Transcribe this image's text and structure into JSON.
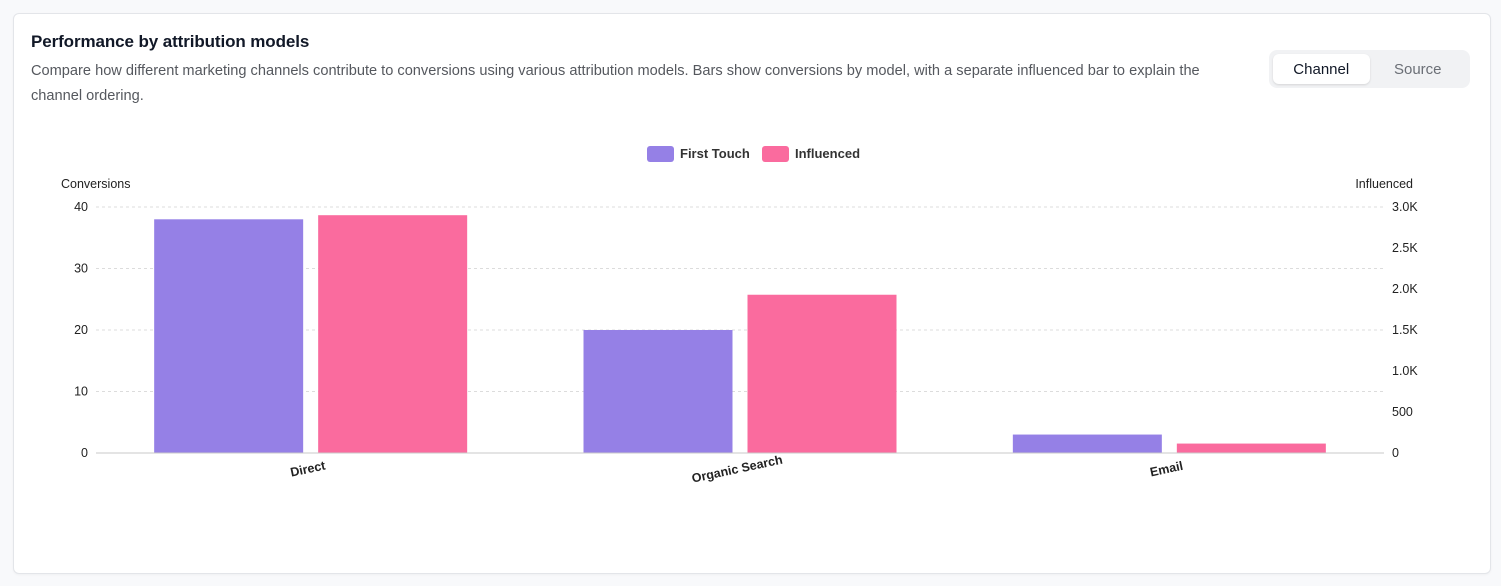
{
  "card": {
    "title": "Performance by attribution models",
    "description": "Compare how different marketing channels contribute to conversions using various attribution models. Bars show conversions by model, with a separate influenced bar to explain the channel ordering."
  },
  "toggle": {
    "options": [
      "Channel",
      "Source"
    ],
    "selected": "Channel"
  },
  "colors": {
    "first_touch": "#9580e6",
    "influenced": "#fa6b9e",
    "grid": "#dcdcdc"
  },
  "chart_data": {
    "type": "bar",
    "categories": [
      "Direct",
      "Organic Search",
      "Email"
    ],
    "series": [
      {
        "name": "First Touch",
        "axis": "left",
        "values": [
          38,
          20,
          3
        ]
      },
      {
        "name": "Influenced",
        "axis": "right",
        "values": [
          2900,
          1930,
          115
        ]
      }
    ],
    "ylabel": "Conversions",
    "ylim": [
      0,
      40
    ],
    "yticks": [
      "0",
      "10",
      "20",
      "30",
      "40"
    ],
    "y2label": "Influenced",
    "y2lim": [
      0,
      3000
    ],
    "y2ticks": [
      "0",
      "500",
      "1.0K",
      "1.5K",
      "2.0K",
      "2.5K",
      "3.0K"
    ],
    "grid": true,
    "legend_position": "top-center"
  }
}
